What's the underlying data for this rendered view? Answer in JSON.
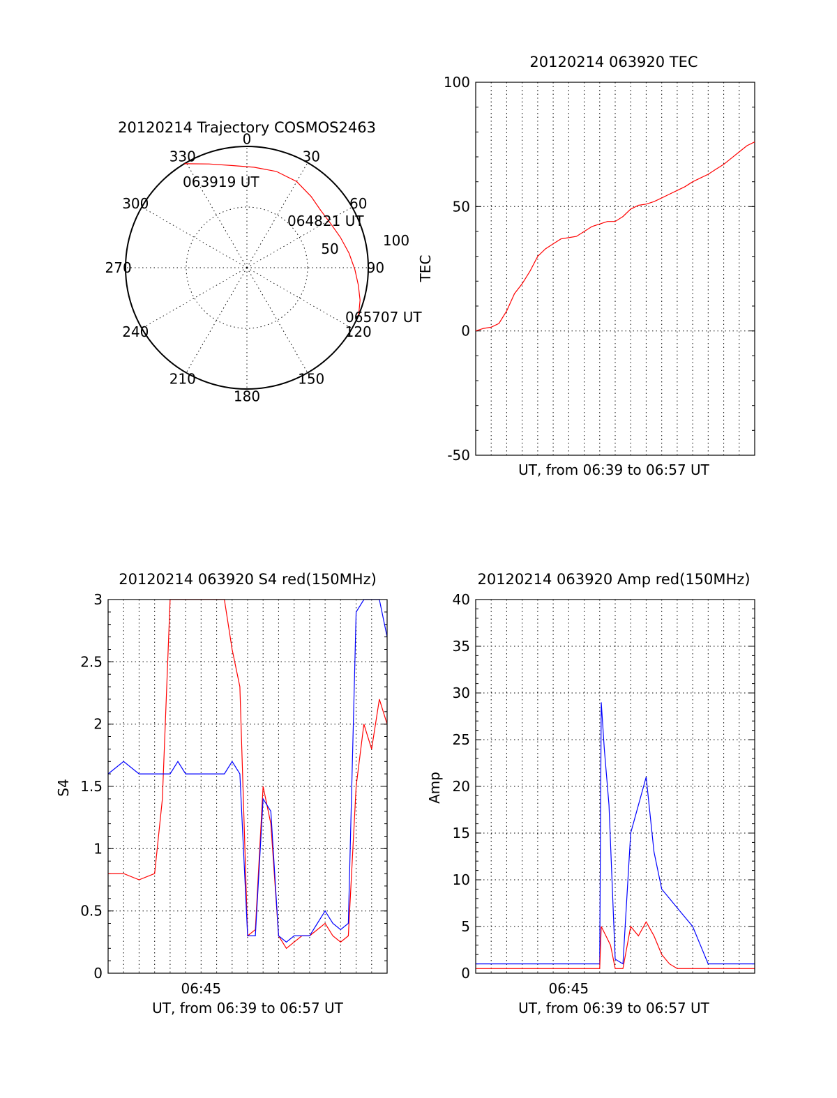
{
  "colors": {
    "red": "#ff0000",
    "blue": "#0000ff",
    "black": "#000000"
  },
  "chart_data": [
    {
      "type": "polar",
      "title": "20120214 Trajectory COSMOS2463",
      "angular_ticks": [
        "0",
        "30",
        "60",
        "90",
        "120",
        "150",
        "180",
        "210",
        "240",
        "270",
        "300",
        "330"
      ],
      "radial_ticks": [
        "50",
        "100"
      ],
      "rlim": [
        0,
        100
      ],
      "angular_direction": "clockwise",
      "zero_location": "top",
      "series": [
        {
          "color": "red",
          "points": [
            {
              "az": 329,
              "r": 100
            },
            {
              "az": 340,
              "r": 91
            },
            {
              "az": 352,
              "r": 85
            },
            {
              "az": 4,
              "r": 83
            },
            {
              "az": 17,
              "r": 83
            },
            {
              "az": 30,
              "r": 82
            },
            {
              "az": 42,
              "r": 79
            },
            {
              "az": 52,
              "r": 77
            },
            {
              "az": 62,
              "r": 78
            },
            {
              "az": 72,
              "r": 81
            },
            {
              "az": 82,
              "r": 85
            },
            {
              "az": 91,
              "r": 89
            },
            {
              "az": 99,
              "r": 93
            },
            {
              "az": 106,
              "r": 97
            },
            {
              "az": 113,
              "r": 100
            }
          ]
        }
      ],
      "annotations": [
        {
          "text": "063919 UT",
          "az": 329,
          "r": 100
        },
        {
          "text": "064821 UT",
          "az": 54,
          "r": 77
        },
        {
          "text": "065707 UT",
          "az": 113,
          "r": 100
        }
      ]
    },
    {
      "type": "line",
      "title": "20120214 063920 TEC",
      "xlabel": "UT, from 06:39 to 06:57 UT",
      "ylabel": "TEC",
      "xlim": [
        0,
        18
      ],
      "ylim": [
        -50,
        100
      ],
      "yticks": [
        "-50",
        "0",
        "50",
        "100"
      ],
      "series": [
        {
          "color": "red",
          "x": [
            0,
            0.5,
            1,
            1.5,
            2,
            2.5,
            3,
            3.5,
            4,
            4.5,
            5,
            5.5,
            6,
            6.5,
            7,
            7.5,
            8,
            8.5,
            9,
            9.5,
            10,
            10.5,
            11,
            11.5,
            12,
            12.5,
            13,
            13.5,
            14,
            14.5,
            15,
            15.5,
            16,
            16.5,
            17,
            17.5,
            18
          ],
          "y": [
            0,
            1,
            1.5,
            3,
            8,
            15,
            19,
            24,
            30,
            33,
            35,
            37,
            37.5,
            38,
            40,
            42,
            43,
            44,
            44,
            46,
            49,
            50.5,
            51,
            52,
            53.5,
            55,
            56.5,
            58,
            60,
            61.5,
            63,
            65,
            67,
            69.5,
            72,
            74.5,
            76
          ]
        }
      ]
    },
    {
      "type": "line",
      "title": "20120214 063920 S4 red(150MHz)",
      "xlabel": "UT, from 06:39 to 06:57 UT",
      "ylabel": "S4",
      "xlim": [
        0,
        18
      ],
      "ylim": [
        0,
        3
      ],
      "xticks": [
        {
          "x": 6,
          "label": "06:45"
        }
      ],
      "yticks": [
        "0",
        "0.5",
        "1",
        "1.5",
        "2",
        "2.5",
        "3"
      ],
      "series": [
        {
          "color": "red",
          "x": [
            0,
            1,
            2,
            3,
            3.5,
            4,
            4.5,
            5,
            5.5,
            6,
            6.5,
            7,
            7.5,
            8,
            8.5,
            9,
            9.5,
            10,
            10.5,
            11,
            11.5,
            12,
            12.5,
            13,
            13.5,
            14,
            14.5,
            15,
            15.5,
            16,
            16.5,
            17,
            17.5,
            18
          ],
          "y": [
            0.8,
            0.8,
            0.75,
            0.8,
            1.4,
            3,
            3,
            3,
            3,
            3,
            3,
            3,
            3,
            2.6,
            2.3,
            0.3,
            0.35,
            1.5,
            1.2,
            0.3,
            0.2,
            0.25,
            0.3,
            0.3,
            0.35,
            0.4,
            0.3,
            0.25,
            0.3,
            1.5,
            2.0,
            1.8,
            2.2,
            2.0
          ]
        },
        {
          "color": "blue",
          "x": [
            0,
            1,
            2,
            3,
            3.5,
            4,
            4.5,
            5,
            5.5,
            6,
            6.5,
            7,
            7.5,
            8,
            8.5,
            9,
            9.5,
            10,
            10.5,
            11,
            11.5,
            12,
            12.5,
            13,
            13.5,
            14,
            14.5,
            15,
            15.5,
            16,
            16.5,
            17,
            17.5,
            18
          ],
          "y": [
            1.6,
            1.7,
            1.6,
            1.6,
            1.6,
            1.6,
            1.7,
            1.6,
            1.6,
            1.6,
            1.6,
            1.6,
            1.6,
            1.7,
            1.6,
            0.3,
            0.3,
            1.4,
            1.3,
            0.3,
            0.25,
            0.3,
            0.3,
            0.3,
            0.4,
            0.5,
            0.4,
            0.35,
            0.4,
            2.9,
            3,
            3,
            3,
            2.7
          ]
        }
      ]
    },
    {
      "type": "line",
      "title": "20120214 063920 Amp red(150MHz)",
      "xlabel": "UT, from 06:39 to 06:57 UT",
      "ylabel": "Amp",
      "xlim": [
        0,
        18
      ],
      "ylim": [
        0,
        40
      ],
      "xticks": [
        {
          "x": 6,
          "label": "06:45"
        }
      ],
      "yticks": [
        "0",
        "5",
        "10",
        "15",
        "20",
        "25",
        "30",
        "35",
        "40"
      ],
      "series": [
        {
          "color": "red",
          "x": [
            0,
            2,
            4,
            6,
            7,
            8,
            8.1,
            8.4,
            8.7,
            9,
            9.5,
            10,
            10.5,
            11,
            11.5,
            12,
            12.5,
            13,
            13.5,
            14,
            14.5,
            15,
            16,
            17,
            18
          ],
          "y": [
            0.5,
            0.5,
            0.5,
            0.5,
            0.5,
            0.5,
            5,
            4,
            3,
            0.5,
            0.5,
            5,
            4,
            5.5,
            4,
            2,
            1,
            0.5,
            0.5,
            0.5,
            0.5,
            0.5,
            0.5,
            0.5,
            0.5
          ]
        },
        {
          "color": "blue",
          "x": [
            0,
            1,
            2,
            3,
            4,
            5,
            6,
            7,
            7.5,
            8,
            8.1,
            8.3,
            8.6,
            9,
            9.5,
            10,
            10.5,
            11,
            11.5,
            12,
            12.5,
            13,
            13.5,
            14,
            14.5,
            15,
            16,
            17,
            18
          ],
          "y": [
            1,
            1,
            1,
            1,
            1,
            1,
            1,
            1,
            1,
            1,
            29,
            24,
            18,
            1.5,
            1,
            15,
            18,
            21,
            13,
            9,
            8,
            7,
            6,
            5,
            3,
            1,
            1,
            1,
            1
          ]
        }
      ]
    }
  ]
}
